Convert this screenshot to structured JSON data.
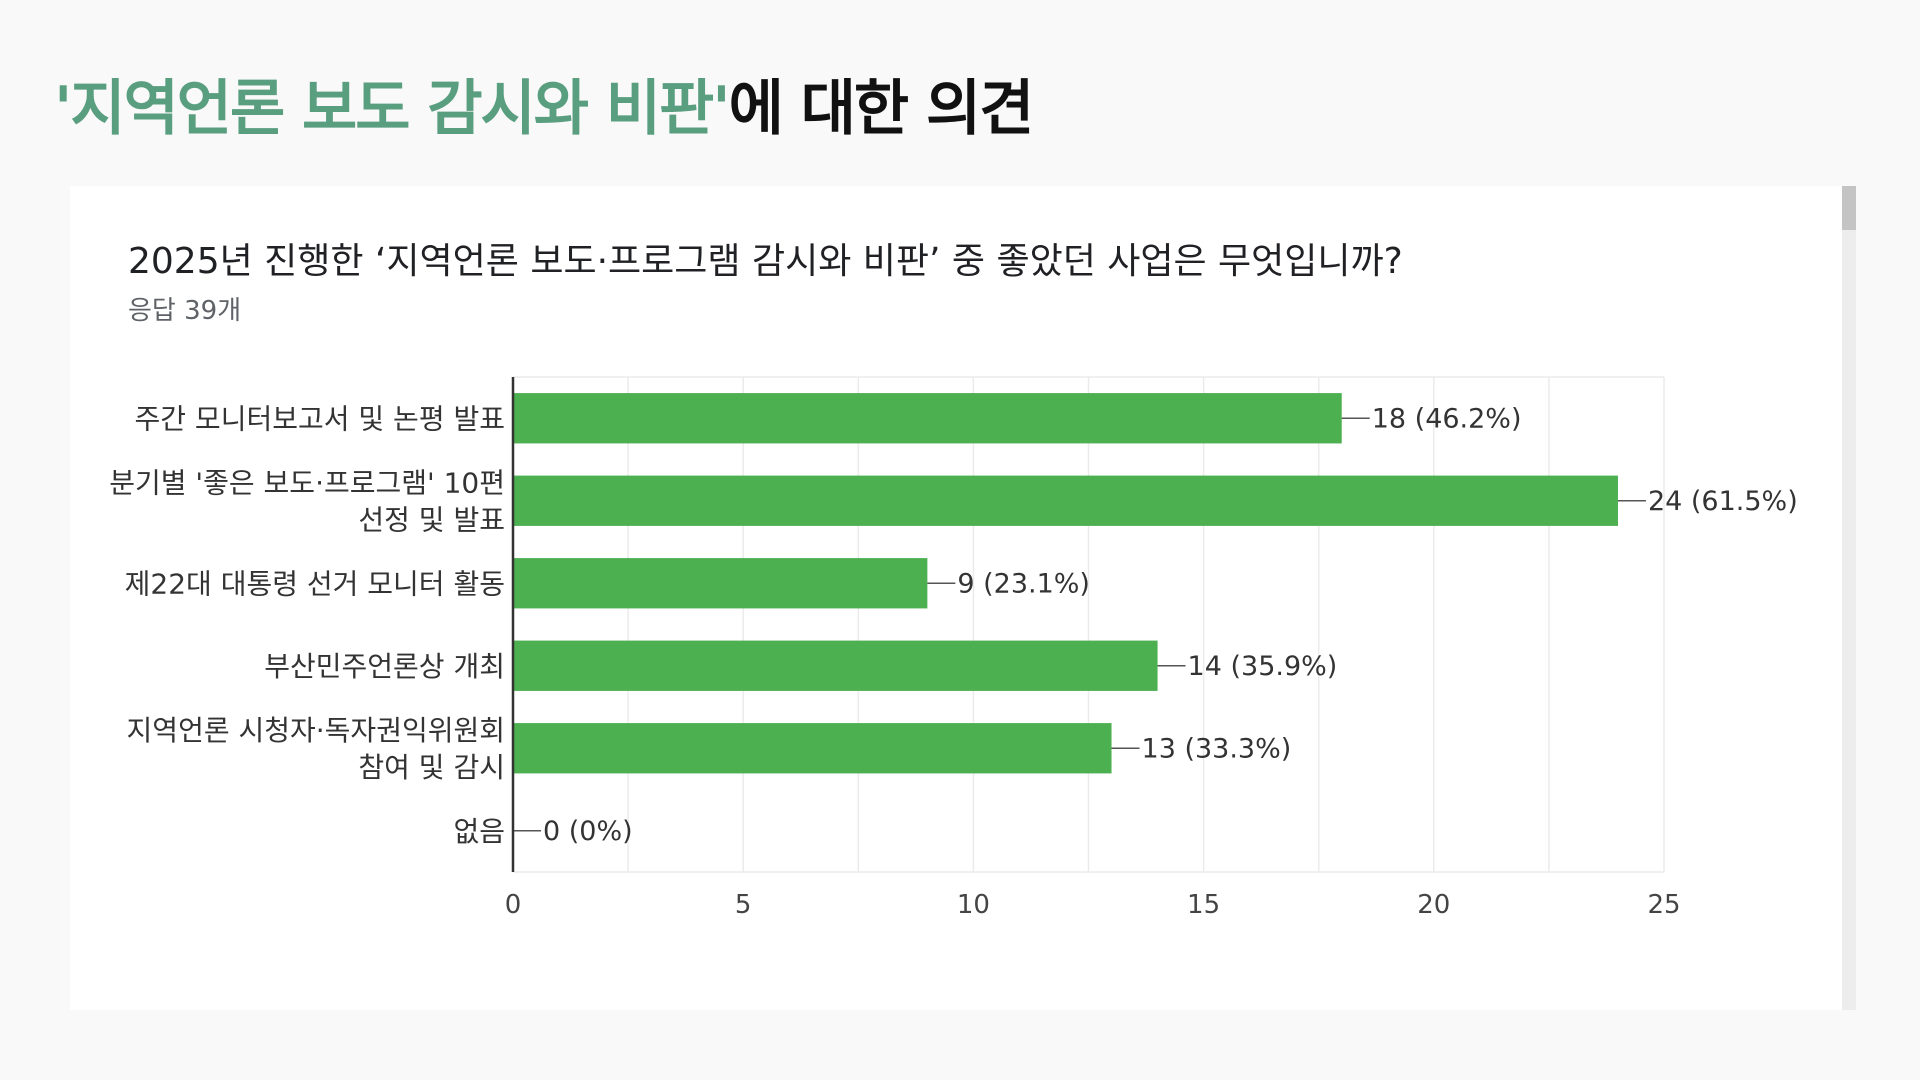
{
  "header": {
    "title_accent": "'지역언론 보도 감시와 비판'",
    "title_rest": "에 대한 의견"
  },
  "colors": {
    "accent": "#5a9e80",
    "bar": "#4caf50"
  },
  "form": {
    "question": "2025년 진행한 ‘지역언론 보도·프로그램 감시와 비판’ 중 좋았던 사업은 무엇입니까?",
    "response_count": "응답 39개"
  },
  "chart_data": {
    "type": "bar",
    "orientation": "horizontal",
    "categories": [
      [
        "주간 모니터보고서 및 논평 발표"
      ],
      [
        "분기별 '좋은 보도·프로그램' 10편",
        "선정 및 발표"
      ],
      [
        "제22대 대통령 선거 모니터 활동"
      ],
      [
        "부산민주언론상 개최"
      ],
      [
        "지역언론 시청자·독자권익위원회",
        "참여 및 감시"
      ],
      [
        "없음"
      ]
    ],
    "values": [
      18,
      24,
      9,
      14,
      13,
      0
    ],
    "data_labels": [
      "18 (46.2%)",
      "24 (61.5%)",
      "9 (23.1%)",
      "14 (35.9%)",
      "13 (33.3%)",
      "0 (0%)"
    ],
    "xlim": [
      0,
      25
    ],
    "xticks": [
      "0",
      "5",
      "10",
      "15",
      "20",
      "25"
    ],
    "grid": true
  }
}
